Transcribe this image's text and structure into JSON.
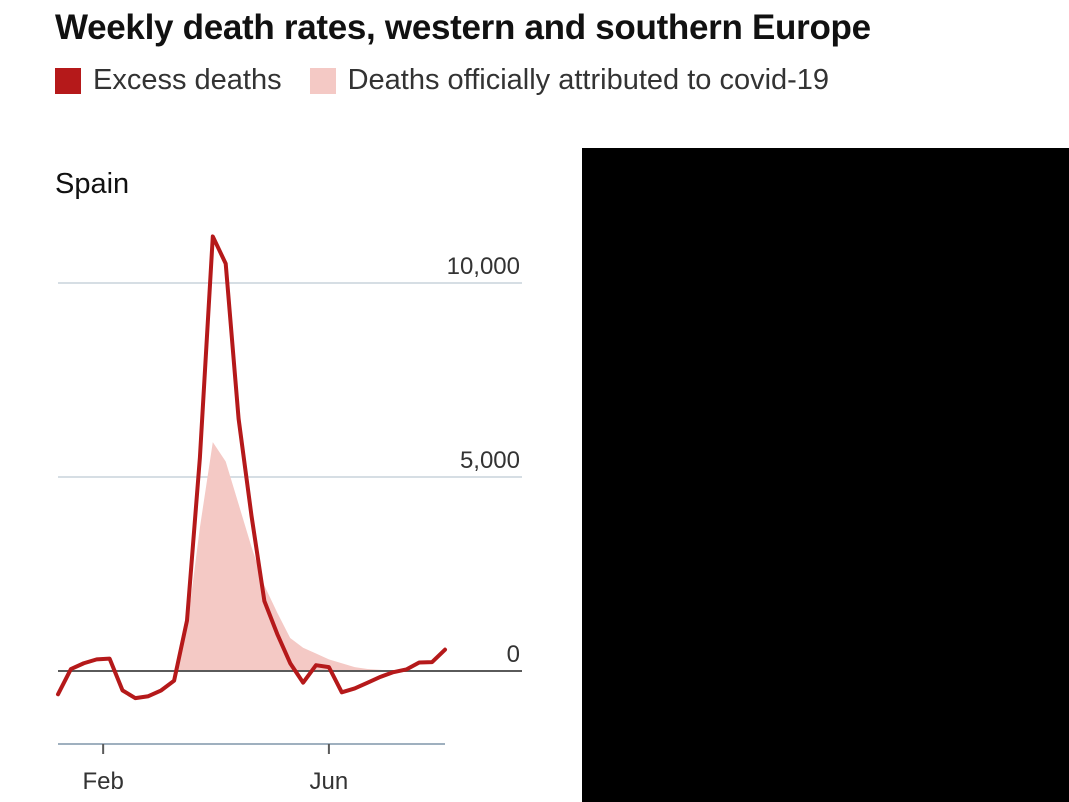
{
  "title": "Weekly death rates, western and southern Europe",
  "legend": {
    "excess": {
      "label": "Excess deaths",
      "color": "#b5191a"
    },
    "covid": {
      "label": "Deaths officially attributed to covid-19",
      "color": "#f4c9c5"
    }
  },
  "chart_data": {
    "type": "line",
    "panel_title": "Spain",
    "x_ticks": [
      "Feb",
      "Jun"
    ],
    "y_ticks": [
      "10,000",
      "5,000",
      "0"
    ],
    "ylim": [
      -1900,
      11300
    ],
    "grid": true,
    "legend_position": "top-left",
    "series": [
      {
        "name": "Excess deaths",
        "color": "#b5191a",
        "type": "line",
        "values": [
          -600,
          50,
          200,
          300,
          320,
          -500,
          -700,
          -650,
          -500,
          -250,
          1300,
          5500,
          11200,
          10500,
          6500,
          4000,
          1800,
          950,
          200,
          -300,
          150,
          100,
          -550,
          -450,
          -300,
          -150,
          -30,
          40,
          220,
          230,
          550
        ]
      },
      {
        "name": "Deaths officially attributed to covid-19",
        "color": "#f4c9c5",
        "type": "area",
        "values": [
          0,
          0,
          0,
          0,
          0,
          0,
          0,
          0,
          0,
          0,
          1100,
          3700,
          5900,
          5400,
          4300,
          3200,
          2200,
          1500,
          850,
          600,
          450,
          300,
          200,
          100,
          50,
          30,
          0,
          0,
          0,
          0,
          0
        ]
      }
    ],
    "x_tick_index": {
      "Feb": 3.5,
      "Jun": 21.0
    }
  }
}
